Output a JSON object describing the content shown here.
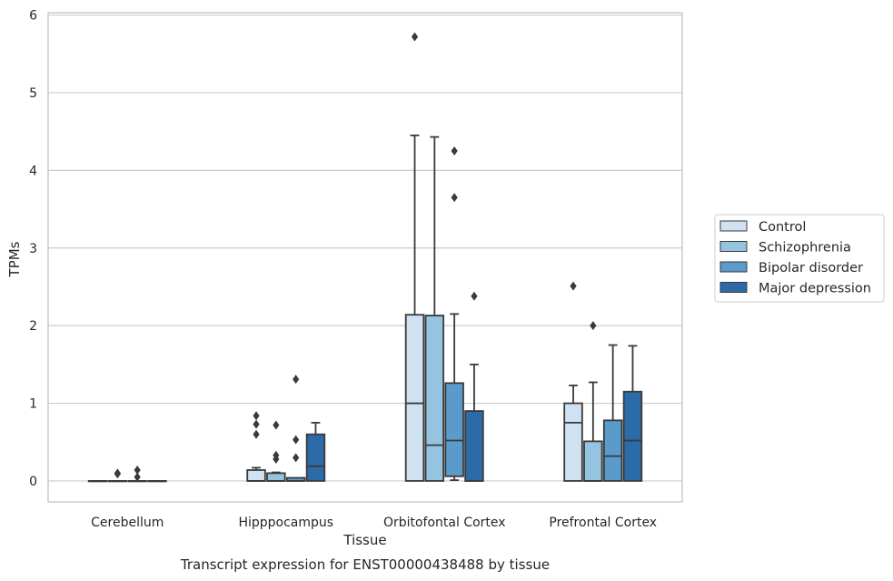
{
  "chart_data": {
    "type": "box",
    "title": "Transcript expression for ENST00000438488 by tissue",
    "xlabel": "Tissue",
    "ylabel": "TPMs",
    "ylim": [
      -0.27,
      6.03
    ],
    "yticks": [
      0,
      1,
      2,
      3,
      4,
      5,
      6
    ],
    "grid": true,
    "legend_position": "right",
    "categories": [
      "Cerebellum",
      "Hipppocampus",
      "Orbitofontal Cortex",
      "Prefrontal Cortex"
    ],
    "series": [
      {
        "name": "Control",
        "color": "#d0e1f2",
        "boxes": [
          {
            "q1": 0,
            "median": 0,
            "q3": 0,
            "whisker_low": 0,
            "whisker_high": 0,
            "outliers": []
          },
          {
            "q1": 0,
            "median": 0,
            "q3": 0.14,
            "whisker_low": 0,
            "whisker_high": 0.17,
            "outliers": [
              0.6,
              0.73,
              0.84
            ]
          },
          {
            "q1": 0,
            "median": 1.0,
            "q3": 2.14,
            "whisker_low": 0,
            "whisker_high": 4.45,
            "outliers": [
              5.72
            ]
          },
          {
            "q1": 0,
            "median": 0.75,
            "q3": 1.0,
            "whisker_low": 0,
            "whisker_high": 1.23,
            "outliers": [
              2.51
            ]
          }
        ]
      },
      {
        "name": "Schizophrenia",
        "color": "#94c4df",
        "boxes": [
          {
            "q1": 0,
            "median": 0,
            "q3": 0,
            "whisker_low": 0,
            "whisker_high": 0,
            "outliers": [
              0.09,
              0.1
            ]
          },
          {
            "q1": 0,
            "median": 0,
            "q3": 0.1,
            "whisker_low": 0,
            "whisker_high": 0.11,
            "outliers": [
              0.28,
              0.33,
              0.72
            ]
          },
          {
            "q1": 0,
            "median": 0.46,
            "q3": 2.13,
            "whisker_low": 0,
            "whisker_high": 4.43,
            "outliers": []
          },
          {
            "q1": 0,
            "median": 0,
            "q3": 0.51,
            "whisker_low": 0,
            "whisker_high": 1.27,
            "outliers": [
              2.0
            ]
          }
        ]
      },
      {
        "name": "Bipolar disorder",
        "color": "#5a9bcb",
        "boxes": [
          {
            "q1": 0,
            "median": 0,
            "q3": 0,
            "whisker_low": 0,
            "whisker_high": 0,
            "outliers": [
              0.05,
              0.14
            ]
          },
          {
            "q1": 0,
            "median": 0,
            "q3": 0.04,
            "whisker_low": 0,
            "whisker_high": 0.04,
            "outliers": [
              0.3,
              0.53,
              1.31
            ]
          },
          {
            "q1": 0.06,
            "median": 0.52,
            "q3": 1.26,
            "whisker_low": 0.01,
            "whisker_high": 2.15,
            "outliers": [
              3.65,
              4.25
            ]
          },
          {
            "q1": 0,
            "median": 0.32,
            "q3": 0.78,
            "whisker_low": 0,
            "whisker_high": 1.75,
            "outliers": []
          }
        ]
      },
      {
        "name": "Major depression",
        "color": "#2d6ba8",
        "boxes": [
          {
            "q1": 0,
            "median": 0,
            "q3": 0,
            "whisker_low": 0,
            "whisker_high": 0,
            "outliers": []
          },
          {
            "q1": 0,
            "median": 0.19,
            "q3": 0.6,
            "whisker_low": 0,
            "whisker_high": 0.75,
            "outliers": []
          },
          {
            "q1": 0,
            "median": 0,
            "q3": 0.9,
            "whisker_low": 0,
            "whisker_high": 1.5,
            "outliers": [
              2.38
            ]
          },
          {
            "q1": 0,
            "median": 0.52,
            "q3": 1.15,
            "whisker_low": 0,
            "whisker_high": 1.74,
            "outliers": []
          }
        ]
      }
    ]
  }
}
